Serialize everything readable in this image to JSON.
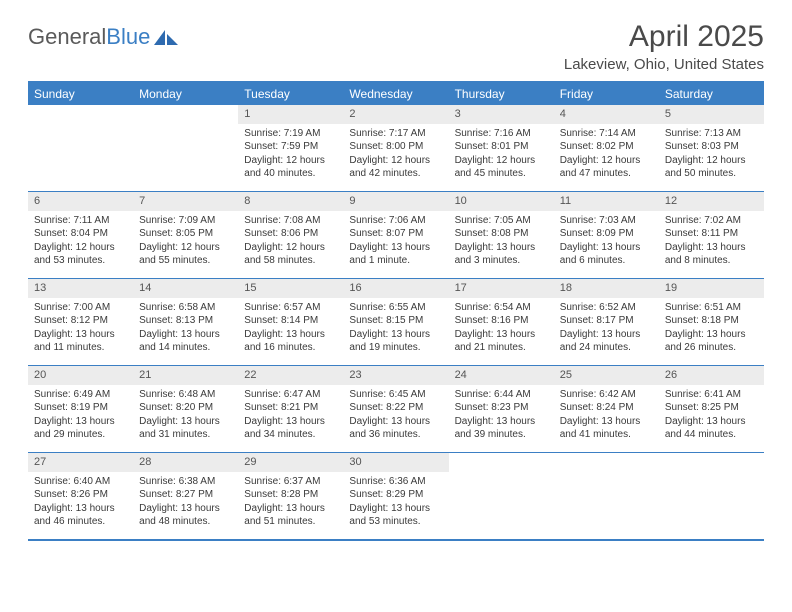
{
  "logo": {
    "text1": "General",
    "text2": "Blue"
  },
  "title": "April 2025",
  "location": "Lakeview, Ohio, United States",
  "header_bg": "#3b7fc4",
  "daynum_bg": "#ececec",
  "border_color": "#3b7fc4",
  "day_headers": [
    "Sunday",
    "Monday",
    "Tuesday",
    "Wednesday",
    "Thursday",
    "Friday",
    "Saturday"
  ],
  "weeks": [
    [
      null,
      null,
      {
        "n": "1",
        "sr": "Sunrise: 7:19 AM",
        "ss": "Sunset: 7:59 PM",
        "dl": "Daylight: 12 hours and 40 minutes."
      },
      {
        "n": "2",
        "sr": "Sunrise: 7:17 AM",
        "ss": "Sunset: 8:00 PM",
        "dl": "Daylight: 12 hours and 42 minutes."
      },
      {
        "n": "3",
        "sr": "Sunrise: 7:16 AM",
        "ss": "Sunset: 8:01 PM",
        "dl": "Daylight: 12 hours and 45 minutes."
      },
      {
        "n": "4",
        "sr": "Sunrise: 7:14 AM",
        "ss": "Sunset: 8:02 PM",
        "dl": "Daylight: 12 hours and 47 minutes."
      },
      {
        "n": "5",
        "sr": "Sunrise: 7:13 AM",
        "ss": "Sunset: 8:03 PM",
        "dl": "Daylight: 12 hours and 50 minutes."
      }
    ],
    [
      {
        "n": "6",
        "sr": "Sunrise: 7:11 AM",
        "ss": "Sunset: 8:04 PM",
        "dl": "Daylight: 12 hours and 53 minutes."
      },
      {
        "n": "7",
        "sr": "Sunrise: 7:09 AM",
        "ss": "Sunset: 8:05 PM",
        "dl": "Daylight: 12 hours and 55 minutes."
      },
      {
        "n": "8",
        "sr": "Sunrise: 7:08 AM",
        "ss": "Sunset: 8:06 PM",
        "dl": "Daylight: 12 hours and 58 minutes."
      },
      {
        "n": "9",
        "sr": "Sunrise: 7:06 AM",
        "ss": "Sunset: 8:07 PM",
        "dl": "Daylight: 13 hours and 1 minute."
      },
      {
        "n": "10",
        "sr": "Sunrise: 7:05 AM",
        "ss": "Sunset: 8:08 PM",
        "dl": "Daylight: 13 hours and 3 minutes."
      },
      {
        "n": "11",
        "sr": "Sunrise: 7:03 AM",
        "ss": "Sunset: 8:09 PM",
        "dl": "Daylight: 13 hours and 6 minutes."
      },
      {
        "n": "12",
        "sr": "Sunrise: 7:02 AM",
        "ss": "Sunset: 8:11 PM",
        "dl": "Daylight: 13 hours and 8 minutes."
      }
    ],
    [
      {
        "n": "13",
        "sr": "Sunrise: 7:00 AM",
        "ss": "Sunset: 8:12 PM",
        "dl": "Daylight: 13 hours and 11 minutes."
      },
      {
        "n": "14",
        "sr": "Sunrise: 6:58 AM",
        "ss": "Sunset: 8:13 PM",
        "dl": "Daylight: 13 hours and 14 minutes."
      },
      {
        "n": "15",
        "sr": "Sunrise: 6:57 AM",
        "ss": "Sunset: 8:14 PM",
        "dl": "Daylight: 13 hours and 16 minutes."
      },
      {
        "n": "16",
        "sr": "Sunrise: 6:55 AM",
        "ss": "Sunset: 8:15 PM",
        "dl": "Daylight: 13 hours and 19 minutes."
      },
      {
        "n": "17",
        "sr": "Sunrise: 6:54 AM",
        "ss": "Sunset: 8:16 PM",
        "dl": "Daylight: 13 hours and 21 minutes."
      },
      {
        "n": "18",
        "sr": "Sunrise: 6:52 AM",
        "ss": "Sunset: 8:17 PM",
        "dl": "Daylight: 13 hours and 24 minutes."
      },
      {
        "n": "19",
        "sr": "Sunrise: 6:51 AM",
        "ss": "Sunset: 8:18 PM",
        "dl": "Daylight: 13 hours and 26 minutes."
      }
    ],
    [
      {
        "n": "20",
        "sr": "Sunrise: 6:49 AM",
        "ss": "Sunset: 8:19 PM",
        "dl": "Daylight: 13 hours and 29 minutes."
      },
      {
        "n": "21",
        "sr": "Sunrise: 6:48 AM",
        "ss": "Sunset: 8:20 PM",
        "dl": "Daylight: 13 hours and 31 minutes."
      },
      {
        "n": "22",
        "sr": "Sunrise: 6:47 AM",
        "ss": "Sunset: 8:21 PM",
        "dl": "Daylight: 13 hours and 34 minutes."
      },
      {
        "n": "23",
        "sr": "Sunrise: 6:45 AM",
        "ss": "Sunset: 8:22 PM",
        "dl": "Daylight: 13 hours and 36 minutes."
      },
      {
        "n": "24",
        "sr": "Sunrise: 6:44 AM",
        "ss": "Sunset: 8:23 PM",
        "dl": "Daylight: 13 hours and 39 minutes."
      },
      {
        "n": "25",
        "sr": "Sunrise: 6:42 AM",
        "ss": "Sunset: 8:24 PM",
        "dl": "Daylight: 13 hours and 41 minutes."
      },
      {
        "n": "26",
        "sr": "Sunrise: 6:41 AM",
        "ss": "Sunset: 8:25 PM",
        "dl": "Daylight: 13 hours and 44 minutes."
      }
    ],
    [
      {
        "n": "27",
        "sr": "Sunrise: 6:40 AM",
        "ss": "Sunset: 8:26 PM",
        "dl": "Daylight: 13 hours and 46 minutes."
      },
      {
        "n": "28",
        "sr": "Sunrise: 6:38 AM",
        "ss": "Sunset: 8:27 PM",
        "dl": "Daylight: 13 hours and 48 minutes."
      },
      {
        "n": "29",
        "sr": "Sunrise: 6:37 AM",
        "ss": "Sunset: 8:28 PM",
        "dl": "Daylight: 13 hours and 51 minutes."
      },
      {
        "n": "30",
        "sr": "Sunrise: 6:36 AM",
        "ss": "Sunset: 8:29 PM",
        "dl": "Daylight: 13 hours and 53 minutes."
      },
      null,
      null,
      null
    ]
  ]
}
